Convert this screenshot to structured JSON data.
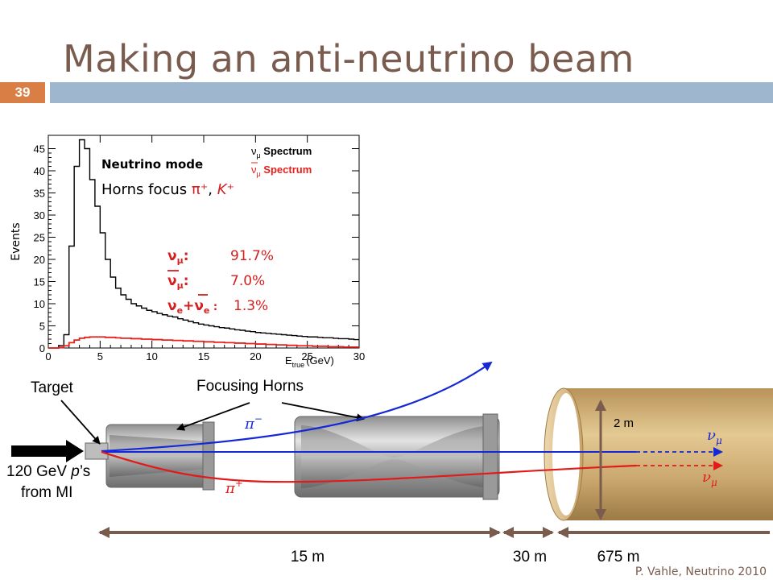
{
  "slide": {
    "title": "Making an anti-neutrino beam",
    "number": "39",
    "footer": "P. Vahle, Neutrino 2010"
  },
  "histogram": {
    "y_axis_label": "Events",
    "x_axis_label": "E",
    "x_axis_label_sub": "true",
    "x_axis_label_unit": "(GeV)",
    "mode_label": "Neutrino mode",
    "focus_text_prefix": "Horns focus ",
    "focus_pi": "π⁺",
    "focus_sep": ", ",
    "focus_k": "K⁺",
    "legend_numu": "ν",
    "legend_numu_sub": "μ",
    "legend_spectrum": " Spectrum",
    "x_ticks": [
      "0",
      "5",
      "10",
      "15",
      "20",
      "25",
      "30"
    ],
    "y_ticks": [
      "0",
      "5",
      "10",
      "15",
      "20",
      "25",
      "30",
      "35",
      "40",
      "45"
    ],
    "fractions": [
      {
        "label": "ν",
        "sub": "μ",
        "suffix": ":",
        "value": "91.7%"
      },
      {
        "label": "ν",
        "sub": "μ",
        "suffix": ":",
        "value": "7.0%",
        "bar": true
      },
      {
        "label": "νe+νe :",
        "value": "1.3%"
      }
    ],
    "fraction_nue_a": "ν",
    "fraction_nue_sub": "e",
    "fraction_nue_plus": "+",
    "fraction_nue_b": "ν",
    "fraction_nue_sub2": "e",
    "fraction_nue_colon": " :",
    "colors": {
      "numu": "#000000",
      "numubar": "#e8201c",
      "label": "#d41f1f"
    }
  },
  "chart_data": {
    "type": "line",
    "xlabel": "E_true (GeV)",
    "ylabel": "Events",
    "xlim": [
      0,
      30
    ],
    "ylim": [
      0,
      48
    ],
    "bin_width": 0.5,
    "series": [
      {
        "name": "νμ Spectrum",
        "values": [
          0,
          0,
          0.5,
          3,
          23,
          41,
          47,
          45,
          38,
          32,
          26,
          20,
          16,
          13.5,
          12,
          11,
          10,
          9.5,
          9,
          8.5,
          8.2,
          7.8,
          7.5,
          7.2,
          7,
          6.6,
          6.3,
          6,
          5.7,
          5.4,
          5.2,
          5,
          4.8,
          4.6,
          4.5,
          4.3,
          4.1,
          4,
          3.8,
          3.7,
          3.5,
          3.4,
          3.3,
          3.2,
          3.1,
          3,
          2.9,
          2.8,
          2.7,
          2.6,
          2.5,
          2.5,
          2.4,
          2.3,
          2.3,
          2.2,
          2.1,
          2.1,
          2,
          1.9
        ]
      },
      {
        "name": "ν̄μ Spectrum",
        "values": [
          0,
          0,
          0.1,
          0.5,
          1.2,
          1.8,
          2.2,
          2.4,
          2.5,
          2.5,
          2.5,
          2.4,
          2.4,
          2.3,
          2.2,
          2.2,
          2.1,
          2.1,
          2,
          2,
          1.9,
          1.9,
          1.8,
          1.8,
          1.7,
          1.7,
          1.6,
          1.6,
          1.5,
          1.5,
          1.4,
          1.4,
          1.3,
          1.3,
          1.2,
          1.2,
          1.1,
          1.1,
          1,
          1,
          0.9,
          0.9,
          0.8,
          0.8,
          0.7,
          0.7,
          0.6,
          0.6,
          0.5,
          0.5,
          0.5,
          0.4,
          0.4,
          0.4,
          0.3,
          0.3,
          0.3,
          0.2,
          0.2,
          0.2
        ]
      }
    ]
  },
  "beamline": {
    "target_label": "Target",
    "horns_label": "Focusing Horns",
    "proton_line1": "120 GeV ",
    "proton_p": "p",
    "proton_line1_end": "’s",
    "proton_line2": "from MI",
    "pi_minus": "π",
    "pi_minus_sup": "−",
    "pi_plus": "π",
    "pi_plus_sup": "+",
    "nu_upper": "ν",
    "nu_upper_sub": "μ",
    "nu_lower": "ν",
    "nu_lower_sub": "μ",
    "pipe_diameter": "2 m",
    "dist_1": "15 m",
    "dist_2": "30 m",
    "dist_3": "675 m",
    "colors": {
      "blue": "#1428d6",
      "red": "#e01b1b",
      "dimension": "#7a5c4f",
      "pipe": "#c8a46a"
    }
  }
}
